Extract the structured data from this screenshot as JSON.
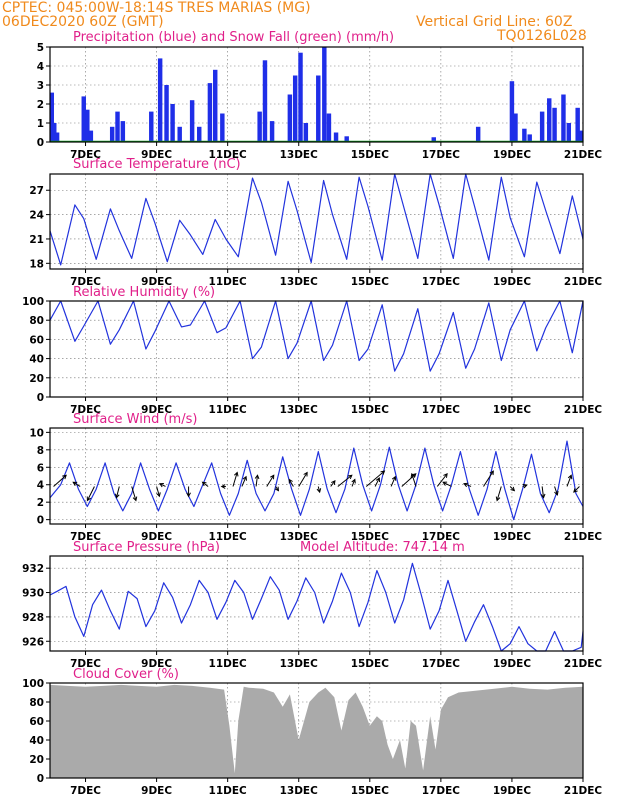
{
  "header": {
    "line1": "CPTEC:  045:00W-18:14S  TRES MARIAS (MG)",
    "line2": "06DEC2020 60Z (GMT)",
    "grid_note": "Vertical Grid Line: 60Z",
    "code": "TQ0126L028"
  },
  "colors": {
    "header": "#f08a1c",
    "titles": "#e0208a",
    "rain": "#1f2ee8",
    "snow": "#10a020",
    "line": "#2233dd",
    "cloud": "#aaaaaa",
    "wind_arrow": "#000000"
  },
  "x_axis": {
    "ticks": [
      {
        "day": 7,
        "label": "7DEC"
      },
      {
        "day": 9,
        "label": "9DEC"
      },
      {
        "day": 11,
        "label": "11DEC"
      },
      {
        "day": 13,
        "label": "13DEC"
      },
      {
        "day": 15,
        "label": "15DEC"
      },
      {
        "day": 17,
        "label": "17DEC"
      },
      {
        "day": 19,
        "label": "19DEC"
      },
      {
        "day": 21,
        "label": "21DEC"
      }
    ]
  },
  "chart_data": [
    {
      "id": "precip",
      "type": "bar",
      "title": "Precipitation (blue) and Snow Fall (green) (mm/h)",
      "xlim": [
        6.0,
        21.0
      ],
      "ylim": [
        0,
        5
      ],
      "yticks": [
        0,
        1,
        2,
        3,
        4,
        5
      ],
      "grid": true,
      "rain_events": [
        {
          "t": 6.05,
          "v": 2.6
        },
        {
          "t": 6.12,
          "v": 1.0
        },
        {
          "t": 6.2,
          "v": 0.5
        },
        {
          "t": 6.95,
          "v": 2.4
        },
        {
          "t": 7.05,
          "v": 1.7
        },
        {
          "t": 7.15,
          "v": 0.6
        },
        {
          "t": 7.75,
          "v": 0.8
        },
        {
          "t": 7.9,
          "v": 1.6
        },
        {
          "t": 8.05,
          "v": 1.1
        },
        {
          "t": 8.85,
          "v": 1.6
        },
        {
          "t": 9.1,
          "v": 4.4
        },
        {
          "t": 9.28,
          "v": 3.0
        },
        {
          "t": 9.45,
          "v": 2.0
        },
        {
          "t": 9.65,
          "v": 0.8
        },
        {
          "t": 10.0,
          "v": 2.2
        },
        {
          "t": 10.2,
          "v": 0.8
        },
        {
          "t": 10.5,
          "v": 3.1
        },
        {
          "t": 10.65,
          "v": 3.8
        },
        {
          "t": 10.85,
          "v": 1.5
        },
        {
          "t": 11.9,
          "v": 1.6
        },
        {
          "t": 12.05,
          "v": 4.3
        },
        {
          "t": 12.25,
          "v": 1.1
        },
        {
          "t": 12.75,
          "v": 2.5
        },
        {
          "t": 12.9,
          "v": 3.5
        },
        {
          "t": 13.05,
          "v": 4.7
        },
        {
          "t": 13.2,
          "v": 1.0
        },
        {
          "t": 13.55,
          "v": 3.5
        },
        {
          "t": 13.72,
          "v": 5.0
        },
        {
          "t": 13.85,
          "v": 1.5
        },
        {
          "t": 14.05,
          "v": 0.5
        },
        {
          "t": 14.35,
          "v": 0.3
        },
        {
          "t": 16.8,
          "v": 0.25
        },
        {
          "t": 18.05,
          "v": 0.8
        },
        {
          "t": 19.0,
          "v": 3.2
        },
        {
          "t": 19.1,
          "v": 1.5
        },
        {
          "t": 19.35,
          "v": 0.7
        },
        {
          "t": 19.5,
          "v": 0.4
        },
        {
          "t": 19.85,
          "v": 1.6
        },
        {
          "t": 20.05,
          "v": 2.3
        },
        {
          "t": 20.2,
          "v": 1.8
        },
        {
          "t": 20.45,
          "v": 2.5
        },
        {
          "t": 20.6,
          "v": 1.0
        },
        {
          "t": 20.85,
          "v": 1.8
        },
        {
          "t": 20.95,
          "v": 0.6
        }
      ],
      "snow": 0
    },
    {
      "id": "temperature",
      "type": "line",
      "title": "Surface Temperature (nC)",
      "xlim": [
        6.0,
        21.0
      ],
      "ylim": [
        17.3,
        29.0
      ],
      "yticks": [
        18,
        21,
        24,
        27
      ],
      "grid": true,
      "x": [
        6.0,
        6.3,
        6.7,
        6.95,
        7.3,
        7.7,
        7.95,
        8.3,
        8.7,
        8.95,
        9.3,
        9.65,
        9.95,
        10.3,
        10.65,
        10.95,
        11.3,
        11.7,
        11.95,
        12.35,
        12.7,
        12.95,
        13.35,
        13.7,
        13.95,
        14.35,
        14.7,
        14.95,
        15.35,
        15.7,
        15.95,
        16.35,
        16.7,
        16.95,
        17.35,
        17.7,
        17.95,
        18.35,
        18.7,
        18.95,
        19.35,
        19.7,
        19.95,
        20.35,
        20.7,
        21.0
      ],
      "values": [
        22.0,
        17.8,
        25.2,
        23.5,
        18.5,
        24.7,
        22.0,
        18.6,
        26.0,
        23.0,
        18.2,
        23.3,
        21.5,
        19.1,
        23.4,
        21.0,
        18.8,
        28.5,
        25.5,
        19.0,
        28.1,
        24.5,
        18.1,
        28.2,
        24.0,
        18.5,
        28.6,
        25.0,
        18.4,
        29.0,
        25.0,
        18.6,
        29.0,
        25.2,
        18.6,
        29.0,
        25.0,
        18.4,
        28.6,
        23.6,
        18.8,
        28.0,
        24.5,
        19.2,
        26.3,
        21.0
      ]
    },
    {
      "id": "humidity",
      "type": "line",
      "title": "Relative Humidity (%)",
      "xlim": [
        6.0,
        21.0
      ],
      "ylim": [
        0,
        100
      ],
      "yticks": [
        0,
        20,
        40,
        60,
        80,
        100
      ],
      "grid": true,
      "x": [
        6.0,
        6.3,
        6.7,
        6.95,
        7.35,
        7.7,
        7.95,
        8.35,
        8.7,
        8.95,
        9.35,
        9.7,
        9.95,
        10.35,
        10.7,
        10.95,
        11.35,
        11.7,
        11.95,
        12.35,
        12.7,
        12.95,
        13.35,
        13.7,
        13.95,
        14.35,
        14.7,
        14.95,
        15.35,
        15.7,
        15.95,
        16.35,
        16.7,
        16.95,
        17.35,
        17.7,
        17.95,
        18.35,
        18.7,
        18.95,
        19.35,
        19.7,
        19.95,
        20.35,
        20.7,
        21.0
      ],
      "values": [
        80,
        100,
        58,
        74,
        100,
        55,
        70,
        100,
        50,
        68,
        100,
        73,
        75,
        100,
        67,
        72,
        100,
        40,
        52,
        100,
        40,
        56,
        100,
        38,
        54,
        100,
        38,
        50,
        96,
        27,
        45,
        92,
        27,
        45,
        88,
        30,
        50,
        98,
        38,
        70,
        100,
        48,
        72,
        100,
        46,
        100
      ]
    },
    {
      "id": "wind",
      "type": "line",
      "title": "Surface Wind (m/s)",
      "xlim": [
        6.0,
        21.0
      ],
      "ylim": [
        -0.5,
        10.5
      ],
      "yticks": [
        0,
        2,
        4,
        6,
        8,
        10
      ],
      "grid": true,
      "x": [
        6.0,
        6.3,
        6.55,
        6.8,
        7.05,
        7.3,
        7.55,
        7.8,
        8.05,
        8.3,
        8.55,
        8.8,
        9.05,
        9.3,
        9.55,
        9.8,
        10.05,
        10.3,
        10.55,
        10.8,
        11.05,
        11.3,
        11.55,
        11.8,
        12.05,
        12.3,
        12.55,
        12.8,
        13.05,
        13.3,
        13.55,
        13.8,
        14.05,
        14.3,
        14.55,
        14.8,
        15.05,
        15.3,
        15.55,
        15.8,
        16.05,
        16.3,
        16.55,
        16.8,
        17.05,
        17.3,
        17.55,
        17.8,
        18.05,
        18.3,
        18.55,
        18.8,
        19.05,
        19.3,
        19.55,
        19.8,
        20.05,
        20.3,
        20.55,
        20.8,
        21.0
      ],
      "values": [
        2.5,
        4.0,
        6.5,
        3.5,
        1.5,
        3.5,
        6.5,
        3.0,
        1.0,
        3.0,
        6.5,
        3.5,
        1.0,
        3.5,
        6.5,
        3.5,
        1.5,
        4.0,
        6.5,
        3.0,
        0.5,
        3.0,
        6.8,
        3.0,
        1.0,
        3.0,
        7.2,
        3.5,
        0.5,
        3.5,
        7.8,
        3.5,
        0.8,
        3.5,
        8.2,
        4.0,
        1.0,
        4.0,
        8.3,
        4.0,
        1.0,
        4.0,
        8.2,
        4.0,
        1.0,
        4.0,
        7.8,
        3.5,
        0.5,
        3.5,
        7.8,
        3.5,
        0.0,
        3.5,
        7.5,
        3.0,
        0.8,
        3.5,
        9.0,
        3.0,
        1.5
      ],
      "arrows": [
        {
          "t": 6.1,
          "dx": 0.9,
          "dy": 0.8
        },
        {
          "t": 6.85,
          "dx": -0.5,
          "dy": 0.3
        },
        {
          "t": 7.25,
          "dx": -0.5,
          "dy": -1.0
        },
        {
          "t": 7.95,
          "dx": -0.2,
          "dy": -0.8
        },
        {
          "t": 8.3,
          "dx": 0.3,
          "dy": -1.0
        },
        {
          "t": 9.0,
          "dx": 0.2,
          "dy": -0.7
        },
        {
          "t": 9.25,
          "dx": -0.4,
          "dy": 0.2
        },
        {
          "t": 9.9,
          "dx": 0.0,
          "dy": -0.7
        },
        {
          "t": 10.45,
          "dx": -0.4,
          "dy": 0.3
        },
        {
          "t": 10.95,
          "dx": -0.3,
          "dy": 0.0
        },
        {
          "t": 11.15,
          "dx": 0.3,
          "dy": 1.0
        },
        {
          "t": 11.4,
          "dx": 0.3,
          "dy": 0.7
        },
        {
          "t": 11.8,
          "dx": 0.1,
          "dy": 0.8
        },
        {
          "t": 12.1,
          "dx": 0.5,
          "dy": 0.8
        },
        {
          "t": 12.35,
          "dx": 0.2,
          "dy": -0.3
        },
        {
          "t": 12.85,
          "dx": -0.3,
          "dy": 0.5
        },
        {
          "t": 13.0,
          "dx": 0.6,
          "dy": 1.0
        },
        {
          "t": 13.55,
          "dx": 0.1,
          "dy": -0.4
        },
        {
          "t": 13.9,
          "dx": 0.3,
          "dy": 0.4
        },
        {
          "t": 14.1,
          "dx": 1.0,
          "dy": 0.8
        },
        {
          "t": 14.5,
          "dx": 0.2,
          "dy": 0.5
        },
        {
          "t": 14.9,
          "dx": 1.3,
          "dy": 1.1
        },
        {
          "t": 15.15,
          "dx": 0.3,
          "dy": 0.6
        },
        {
          "t": 15.6,
          "dx": 0.3,
          "dy": 0.7
        },
        {
          "t": 15.9,
          "dx": 1.0,
          "dy": 0.9
        },
        {
          "t": 16.3,
          "dx": -0.3,
          "dy": 0.9
        },
        {
          "t": 16.9,
          "dx": 0.7,
          "dy": 0.9
        },
        {
          "t": 17.3,
          "dx": -0.6,
          "dy": 0.3
        },
        {
          "t": 17.85,
          "dx": -0.5,
          "dy": 0.2
        },
        {
          "t": 18.2,
          "dx": 0.7,
          "dy": 1.1
        },
        {
          "t": 18.7,
          "dx": -0.3,
          "dy": -1.0
        },
        {
          "t": 18.95,
          "dx": 0.3,
          "dy": -0.3
        },
        {
          "t": 19.3,
          "dx": 0.3,
          "dy": 0.1
        },
        {
          "t": 19.85,
          "dx": 0.1,
          "dy": -0.8
        },
        {
          "t": 20.2,
          "dx": 0.2,
          "dy": -0.6
        },
        {
          "t": 20.55,
          "dx": 0.3,
          "dy": 0.8
        },
        {
          "t": 20.9,
          "dx": -0.4,
          "dy": -0.4
        }
      ]
    },
    {
      "id": "pressure",
      "type": "line",
      "title": "Surface Pressure (hPa)",
      "subtitle": "Model Altitude: 747.14  m",
      "xlim": [
        6.0,
        21.0
      ],
      "ylim": [
        925.2,
        933.0
      ],
      "yticks": [
        926,
        928,
        930,
        932
      ],
      "grid": true,
      "x": [
        6.0,
        6.2,
        6.45,
        6.7,
        6.95,
        7.2,
        7.45,
        7.7,
        7.95,
        8.2,
        8.45,
        8.7,
        8.95,
        9.2,
        9.45,
        9.7,
        9.95,
        10.2,
        10.45,
        10.7,
        10.95,
        11.2,
        11.45,
        11.7,
        11.95,
        12.2,
        12.45,
        12.7,
        12.95,
        13.2,
        13.45,
        13.7,
        13.95,
        14.2,
        14.45,
        14.7,
        14.95,
        15.2,
        15.45,
        15.7,
        15.95,
        16.2,
        16.45,
        16.7,
        16.95,
        17.2,
        17.45,
        17.7,
        17.95,
        18.2,
        18.45,
        18.7,
        18.95,
        19.2,
        19.45,
        19.7,
        19.95,
        20.2,
        20.45,
        20.7,
        20.95,
        21.0
      ],
      "values": [
        929.8,
        930.1,
        930.5,
        928.0,
        926.4,
        929.0,
        930.2,
        928.5,
        927.0,
        930.1,
        929.5,
        927.2,
        928.5,
        930.8,
        929.6,
        927.5,
        929.0,
        931.0,
        930.0,
        927.8,
        929.2,
        931.0,
        930.0,
        927.8,
        929.5,
        931.3,
        930.2,
        927.8,
        929.3,
        931.2,
        930.0,
        927.5,
        929.3,
        931.6,
        930.0,
        927.2,
        929.2,
        931.8,
        930.0,
        927.5,
        929.4,
        932.4,
        929.8,
        927.0,
        928.5,
        931.0,
        928.5,
        926.0,
        927.6,
        929.0,
        927.2,
        925.0,
        925.8,
        927.2,
        925.8,
        924.8,
        925.2,
        926.8,
        925.0,
        924.8,
        925.5,
        926.8
      ]
    },
    {
      "id": "cloud",
      "type": "area",
      "title": "Cloud Cover (%)",
      "xlim": [
        6.0,
        21.0
      ],
      "ylim": [
        0,
        100
      ],
      "yticks": [
        0,
        20,
        40,
        60,
        80,
        100
      ],
      "grid": true,
      "x": [
        6.0,
        6.5,
        7.0,
        7.5,
        8.0,
        8.5,
        9.0,
        9.5,
        10.0,
        10.5,
        10.9,
        11.05,
        11.2,
        11.3,
        11.45,
        11.6,
        12.0,
        12.3,
        12.55,
        12.75,
        13.0,
        13.3,
        13.55,
        13.75,
        14.0,
        14.2,
        14.4,
        14.6,
        14.8,
        15.0,
        15.2,
        15.35,
        15.5,
        15.65,
        15.85,
        16.0,
        16.15,
        16.3,
        16.5,
        16.7,
        16.85,
        17.0,
        17.2,
        17.5,
        18.0,
        18.5,
        19.0,
        19.5,
        20.0,
        20.5,
        21.0
      ],
      "values": [
        98,
        97,
        96,
        97,
        98,
        97,
        96,
        98,
        97,
        95,
        93,
        55,
        5,
        60,
        96,
        95,
        94,
        90,
        75,
        88,
        40,
        80,
        90,
        95,
        85,
        50,
        82,
        90,
        75,
        55,
        65,
        60,
        35,
        20,
        40,
        10,
        60,
        55,
        8,
        65,
        30,
        72,
        85,
        90,
        92,
        94,
        96,
        94,
        93,
        95,
        96
      ]
    }
  ]
}
